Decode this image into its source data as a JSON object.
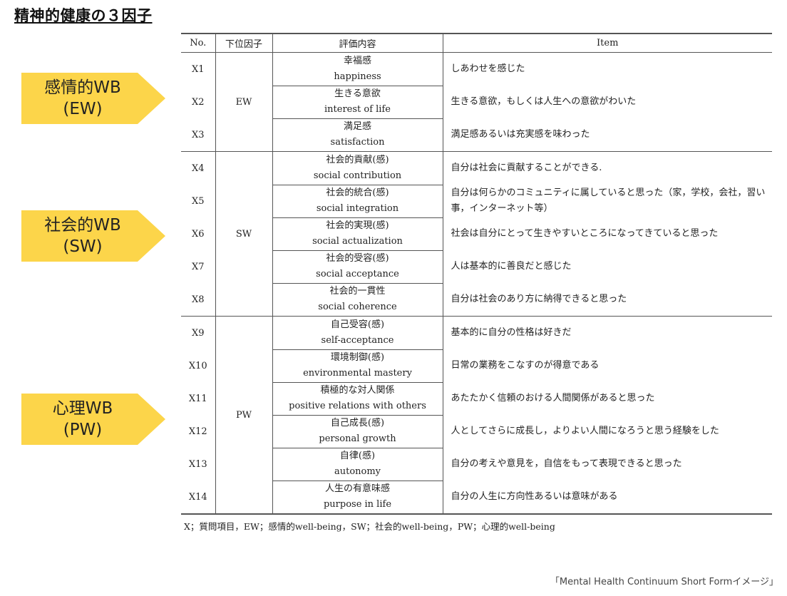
{
  "title": "精神的健康の３因子",
  "factors": [
    {
      "line1": "感情的WB",
      "line2": "(EW)"
    },
    {
      "line1": "社会的WB",
      "line2": "(SW)"
    },
    {
      "line1": "心理WB",
      "line2": "(PW)"
    }
  ],
  "table": {
    "headers": {
      "no": "No.",
      "factor": "下位因子",
      "sub": "評価内容",
      "item": "Item"
    },
    "groups": [
      {
        "code": "EW",
        "rows": [
          {
            "no": "X1",
            "jp": "幸福感",
            "en": "happiness",
            "item": "しあわせを感じた"
          },
          {
            "no": "X2",
            "jp": "生きる意欲",
            "en": "interest of life",
            "item": "生きる意欲，もしくは人生への意欲がわいた"
          },
          {
            "no": "X3",
            "jp": "満足感",
            "en": "satisfaction",
            "item": "満足感あるいは充実感を味わった"
          }
        ]
      },
      {
        "code": "SW",
        "rows": [
          {
            "no": "X4",
            "jp": "社会的貢献(感)",
            "en": "social contribution",
            "item": "自分は社会に貢献することができる."
          },
          {
            "no": "X5",
            "jp": "社会的統合(感)",
            "en": "social integration",
            "item": "自分は何らかのコミュニティに属していると思った（家，学校，会社，習い事，インターネット等）"
          },
          {
            "no": "X6",
            "jp": "社会的実現(感)",
            "en": "social actualization",
            "item": "社会は自分にとって生きやすいところになってきていると思った"
          },
          {
            "no": "X7",
            "jp": "社会的受容(感)",
            "en": "social acceptance",
            "item": "人は基本的に善良だと感じた"
          },
          {
            "no": "X8",
            "jp": "社会的一貫性",
            "en": "social coherence",
            "item": "自分は社会のあり方に納得できると思った"
          }
        ]
      },
      {
        "code": "PW",
        "rows": [
          {
            "no": "X9",
            "jp": "自己受容(感)",
            "en": "self-acceptance",
            "item": "基本的に自分の性格は好きだ"
          },
          {
            "no": "X10",
            "jp": "環境制御(感)",
            "en": "environmental mastery",
            "item": "日常の業務をこなすのが得意である"
          },
          {
            "no": "X11",
            "jp": "積極的な対人関係",
            "en": "positive relations with others",
            "item": "あたたかく信頼のおける人間関係があると思った"
          },
          {
            "no": "X12",
            "jp": "自己成長(感)",
            "en": "personal growth",
            "item": "人としてさらに成長し，よりよい人間になろうと思う経験をした"
          },
          {
            "no": "X13",
            "jp": "自律(感)",
            "en": "autonomy",
            "item": "自分の考えや意見を，自信をもって表現できると思った"
          },
          {
            "no": "X14",
            "jp": "人生の有意味感",
            "en": "purpose in life",
            "item": "自分の人生に方向性あるいは意味がある"
          }
        ]
      }
    ]
  },
  "note": "X；質問項目，EW；感情的well-being，SW；社会的well-being，PW；心理的well-being",
  "caption": "「Mental Health Continuum Short Formイメージ」",
  "colors": {
    "arrow_fill": "#fcd54a",
    "rule": "#555555"
  }
}
